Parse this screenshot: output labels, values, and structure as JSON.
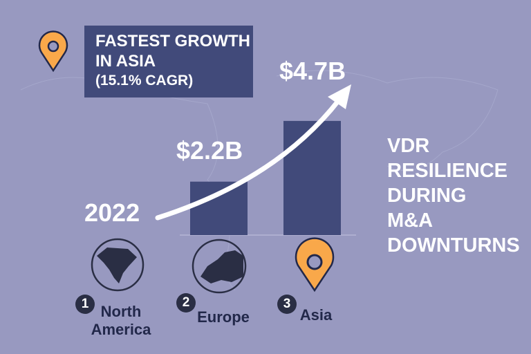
{
  "callout": {
    "line1": "FASTEST GROWTH",
    "line2": "IN ASIA",
    "line3": "(15.1% CAGR)",
    "icon": "map-pin-icon"
  },
  "start_label": "2022",
  "side_text": [
    "VDR",
    "RESILIENCE",
    "DURING",
    "M&A",
    "DOWNTURNS"
  ],
  "colors": {
    "background": "#9899c0",
    "bar": "#414a7a",
    "pin": "#f9a84a",
    "dark": "#22284a"
  },
  "chart_data": {
    "type": "bar",
    "values": [
      2.2,
      4.7
    ],
    "data_labels": [
      "$2.2B",
      "$4.7B"
    ],
    "unit": "$B",
    "ylim": [
      0,
      5.5
    ],
    "grid": false,
    "trend_arrow": true
  },
  "regions": [
    {
      "rank": "1",
      "name_line1": "North",
      "name_line2": "America",
      "icon": "north-america-globe-icon"
    },
    {
      "rank": "2",
      "name_line1": "Europe",
      "name_line2": "",
      "icon": "europe-globe-icon"
    },
    {
      "rank": "3",
      "name_line1": "Asia",
      "name_line2": "",
      "icon": "map-pin-icon"
    }
  ]
}
